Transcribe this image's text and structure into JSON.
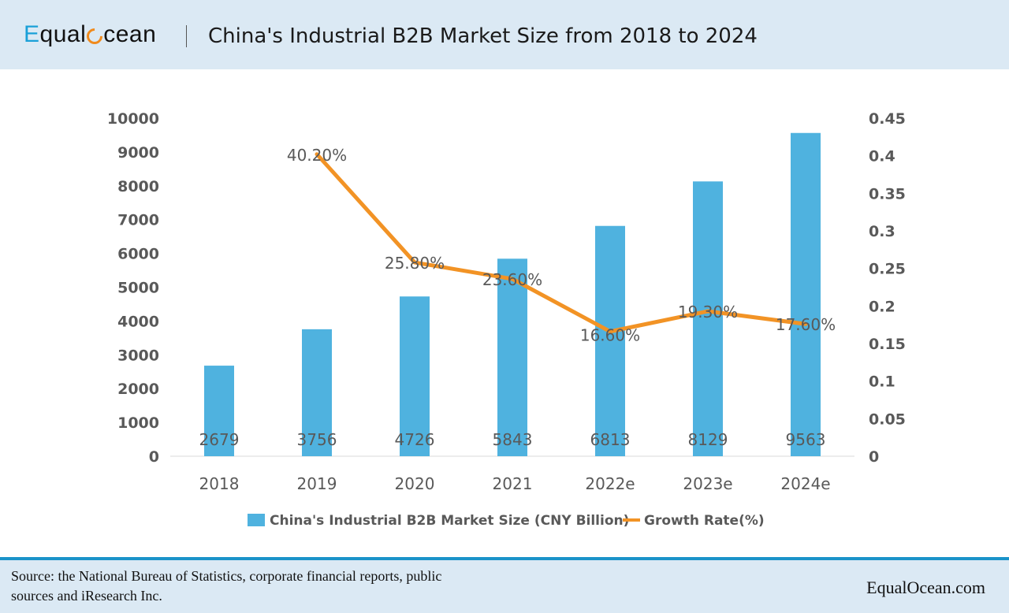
{
  "header": {
    "logo_prefix": "E",
    "logo_mid": "qual",
    "logo_suffix": "cean",
    "logo_alt": "EqualOcean",
    "title": "China's Industrial B2B Market Size from 2018 to 2024"
  },
  "colors": {
    "bar": "#4fb2df",
    "line": "#f29325",
    "header_bg": "#dbe9f4",
    "accent_blue": "#1aa0d8"
  },
  "chart_data": {
    "type": "bar+line",
    "title": "China's Industrial B2B Market Size from 2018 to 2024",
    "categories": [
      "2018",
      "2019",
      "2020",
      "2021",
      "2022e",
      "2023e",
      "2024e"
    ],
    "series": [
      {
        "name": "China's Industrial B2B Market Size (CNY Billion)",
        "type": "bar",
        "axis": "left",
        "values": [
          2679,
          3756,
          4726,
          5843,
          6813,
          8129,
          9563
        ],
        "labels": [
          "2679",
          "3756",
          "4726",
          "5843",
          "6813",
          "8129",
          "9563"
        ]
      },
      {
        "name": "Growth Rate(%)",
        "type": "line",
        "axis": "right",
        "values": [
          null,
          0.402,
          0.258,
          0.236,
          0.166,
          0.193,
          0.176
        ],
        "labels": [
          null,
          "40.20%",
          "25.80%",
          "23.60%",
          "16.60%",
          "19.30%",
          "17.60%"
        ]
      }
    ],
    "y_left": {
      "range": [
        0,
        10000
      ],
      "ticks": [
        "0",
        "1000",
        "2000",
        "3000",
        "4000",
        "5000",
        "6000",
        "7000",
        "8000",
        "9000",
        "10000"
      ]
    },
    "y_right": {
      "range": [
        0,
        0.45
      ],
      "ticks": [
        "0",
        "0.05",
        "0.1",
        "0.15",
        "0.2",
        "0.25",
        "0.3",
        "0.35",
        "0.4",
        "0.45"
      ]
    },
    "legend_position": "bottom",
    "grid": false
  },
  "footer": {
    "source_line1": "Source: the National Bureau of Statistics, corporate financial reports, public",
    "source_line2": "sources and iResearch Inc.",
    "site": "EqualOcean.com"
  }
}
